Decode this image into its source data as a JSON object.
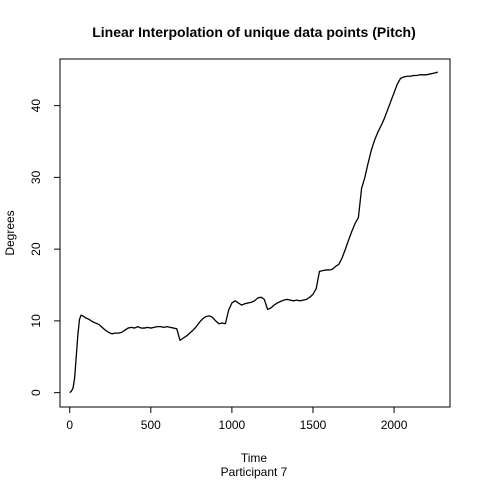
{
  "chart_data": {
    "type": "line",
    "title": "Linear Interpolation of unique data points (Pitch)",
    "xlabel": "Time",
    "sublabel": "Participant  7",
    "ylabel": "Degrees",
    "xlim": [
      -60,
      2345
    ],
    "ylim": [
      -2,
      46.5
    ],
    "xticks": [
      0,
      500,
      1000,
      1500,
      2000
    ],
    "yticks": [
      0,
      10,
      20,
      30,
      40
    ],
    "grid": false,
    "legend": "none",
    "line_color": "#000000",
    "series": [
      {
        "x": [
          0,
          10,
          20,
          30,
          40,
          50,
          60,
          70,
          80,
          100,
          120,
          140,
          160,
          180,
          200,
          220,
          240,
          260,
          280,
          300,
          320,
          340,
          360,
          380,
          400,
          420,
          440,
          460,
          480,
          500,
          520,
          540,
          560,
          580,
          600,
          620,
          640,
          660,
          680,
          700,
          720,
          740,
          760,
          780,
          800,
          820,
          840,
          860,
          880,
          900,
          920,
          940,
          960,
          980,
          1000,
          1020,
          1040,
          1060,
          1080,
          1100,
          1120,
          1140,
          1160,
          1180,
          1200,
          1220,
          1240,
          1260,
          1280,
          1300,
          1320,
          1340,
          1360,
          1380,
          1400,
          1420,
          1440,
          1460,
          1480,
          1500,
          1520,
          1540,
          1560,
          1580,
          1600,
          1620,
          1640,
          1660,
          1680,
          1700,
          1720,
          1740,
          1760,
          1780,
          1800,
          1820,
          1840,
          1860,
          1880,
          1900,
          1920,
          1940,
          1960,
          1980,
          2000,
          2020,
          2040,
          2060,
          2080,
          2100,
          2120,
          2140,
          2160,
          2180,
          2200,
          2220,
          2240,
          2260,
          2270
        ],
        "y": [
          0,
          0.2,
          0.6,
          2,
          5,
          8,
          10.2,
          10.8,
          10.7,
          10.4,
          10.2,
          9.9,
          9.7,
          9.5,
          9.1,
          8.7,
          8.4,
          8.2,
          8.3,
          8.3,
          8.4,
          8.7,
          9.0,
          9.1,
          9.0,
          9.2,
          9.0,
          9.0,
          9.1,
          9.0,
          9.1,
          9.2,
          9.2,
          9.1,
          9.2,
          9.1,
          9.0,
          8.9,
          7.3,
          7.6,
          7.9,
          8.3,
          8.7,
          9.2,
          9.8,
          10.3,
          10.6,
          10.7,
          10.5,
          10.0,
          9.6,
          9.7,
          9.6,
          11.5,
          12.5,
          12.8,
          12.5,
          12.2,
          12.4,
          12.5,
          12.6,
          12.8,
          13.2,
          13.3,
          13.0,
          11.6,
          11.8,
          12.2,
          12.5,
          12.7,
          12.9,
          13.0,
          12.9,
          12.8,
          12.9,
          12.8,
          12.9,
          13.0,
          13.3,
          13.7,
          14.5,
          16.9,
          17.0,
          17.1,
          17.1,
          17.2,
          17.6,
          17.9,
          18.8,
          20.0,
          21.3,
          22.5,
          23.6,
          24.4,
          28.5,
          30.0,
          32.0,
          33.8,
          35.2,
          36.3,
          37.2,
          38.2,
          39.4,
          40.6,
          41.8,
          43.0,
          43.8,
          44.0,
          44.1,
          44.1,
          44.2,
          44.2,
          44.3,
          44.3,
          44.3,
          44.4,
          44.5,
          44.6,
          44.7
        ]
      }
    ]
  }
}
